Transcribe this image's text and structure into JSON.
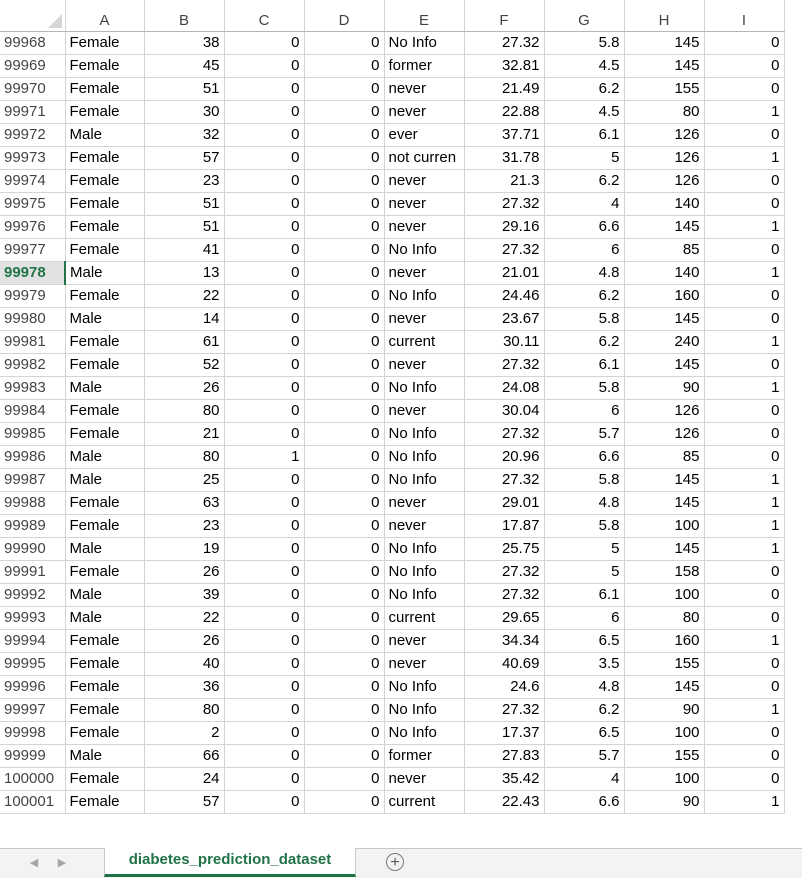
{
  "columns": [
    "A",
    "B",
    "C",
    "D",
    "E",
    "F",
    "G",
    "H",
    "I"
  ],
  "active_row": "99978",
  "rows": [
    [
      "99968",
      "Female",
      "38",
      "0",
      "0",
      "No Info",
      "27.32",
      "5.8",
      "145",
      "0"
    ],
    [
      "99969",
      "Female",
      "45",
      "0",
      "0",
      "former",
      "32.81",
      "4.5",
      "145",
      "0"
    ],
    [
      "99970",
      "Female",
      "51",
      "0",
      "0",
      "never",
      "21.49",
      "6.2",
      "155",
      "0"
    ],
    [
      "99971",
      "Female",
      "30",
      "0",
      "0",
      "never",
      "22.88",
      "4.5",
      "80",
      "1"
    ],
    [
      "99972",
      "Male",
      "32",
      "0",
      "0",
      "ever",
      "37.71",
      "6.1",
      "126",
      "0"
    ],
    [
      "99973",
      "Female",
      "57",
      "0",
      "0",
      "not curren",
      "31.78",
      "5",
      "126",
      "1"
    ],
    [
      "99974",
      "Female",
      "23",
      "0",
      "0",
      "never",
      "21.3",
      "6.2",
      "126",
      "0"
    ],
    [
      "99975",
      "Female",
      "51",
      "0",
      "0",
      "never",
      "27.32",
      "4",
      "140",
      "0"
    ],
    [
      "99976",
      "Female",
      "51",
      "0",
      "0",
      "never",
      "29.16",
      "6.6",
      "145",
      "1"
    ],
    [
      "99977",
      "Female",
      "41",
      "0",
      "0",
      "No Info",
      "27.32",
      "6",
      "85",
      "0"
    ],
    [
      "99978",
      "Male",
      "13",
      "0",
      "0",
      "never",
      "21.01",
      "4.8",
      "140",
      "1"
    ],
    [
      "99979",
      "Female",
      "22",
      "0",
      "0",
      "No Info",
      "24.46",
      "6.2",
      "160",
      "0"
    ],
    [
      "99980",
      "Male",
      "14",
      "0",
      "0",
      "never",
      "23.67",
      "5.8",
      "145",
      "0"
    ],
    [
      "99981",
      "Female",
      "61",
      "0",
      "0",
      "current",
      "30.11",
      "6.2",
      "240",
      "1"
    ],
    [
      "99982",
      "Female",
      "52",
      "0",
      "0",
      "never",
      "27.32",
      "6.1",
      "145",
      "0"
    ],
    [
      "99983",
      "Male",
      "26",
      "0",
      "0",
      "No Info",
      "24.08",
      "5.8",
      "90",
      "1"
    ],
    [
      "99984",
      "Female",
      "80",
      "0",
      "0",
      "never",
      "30.04",
      "6",
      "126",
      "0"
    ],
    [
      "99985",
      "Female",
      "21",
      "0",
      "0",
      "No Info",
      "27.32",
      "5.7",
      "126",
      "0"
    ],
    [
      "99986",
      "Male",
      "80",
      "1",
      "0",
      "No Info",
      "20.96",
      "6.6",
      "85",
      "0"
    ],
    [
      "99987",
      "Male",
      "25",
      "0",
      "0",
      "No Info",
      "27.32",
      "5.8",
      "145",
      "1"
    ],
    [
      "99988",
      "Female",
      "63",
      "0",
      "0",
      "never",
      "29.01",
      "4.8",
      "145",
      "1"
    ],
    [
      "99989",
      "Female",
      "23",
      "0",
      "0",
      "never",
      "17.87",
      "5.8",
      "100",
      "1"
    ],
    [
      "99990",
      "Male",
      "19",
      "0",
      "0",
      "No Info",
      "25.75",
      "5",
      "145",
      "1"
    ],
    [
      "99991",
      "Female",
      "26",
      "0",
      "0",
      "No Info",
      "27.32",
      "5",
      "158",
      "0"
    ],
    [
      "99992",
      "Male",
      "39",
      "0",
      "0",
      "No Info",
      "27.32",
      "6.1",
      "100",
      "0"
    ],
    [
      "99993",
      "Male",
      "22",
      "0",
      "0",
      "current",
      "29.65",
      "6",
      "80",
      "0"
    ],
    [
      "99994",
      "Female",
      "26",
      "0",
      "0",
      "never",
      "34.34",
      "6.5",
      "160",
      "1"
    ],
    [
      "99995",
      "Female",
      "40",
      "0",
      "0",
      "never",
      "40.69",
      "3.5",
      "155",
      "0"
    ],
    [
      "99996",
      "Female",
      "36",
      "0",
      "0",
      "No Info",
      "24.6",
      "4.8",
      "145",
      "0"
    ],
    [
      "99997",
      "Female",
      "80",
      "0",
      "0",
      "No Info",
      "27.32",
      "6.2",
      "90",
      "1"
    ],
    [
      "99998",
      "Female",
      "2",
      "0",
      "0",
      "No Info",
      "17.37",
      "6.5",
      "100",
      "0"
    ],
    [
      "99999",
      "Male",
      "66",
      "0",
      "0",
      "former",
      "27.83",
      "5.7",
      "155",
      "0"
    ],
    [
      "100000",
      "Female",
      "24",
      "0",
      "0",
      "never",
      "35.42",
      "4",
      "100",
      "0"
    ],
    [
      "100001",
      "Female",
      "57",
      "0",
      "0",
      "current",
      "22.43",
      "6.6",
      "90",
      "1"
    ]
  ],
  "tabs": {
    "scroll_left_icon": "triangle-left-icon",
    "scroll_right_icon": "triangle-right-icon",
    "active_sheet": "diabetes_prediction_dataset",
    "add_sheet_icon": "plus-circle-icon"
  },
  "colors": {
    "accent": "#217346",
    "gridline": "#d4d4d4",
    "tabbar": "#f3f3f3"
  }
}
